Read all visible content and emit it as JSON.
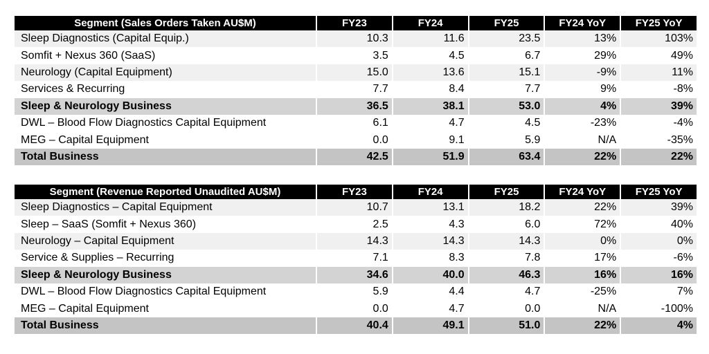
{
  "tables": [
    {
      "headers": [
        "Segment (Sales Orders Taken AU$M)",
        "FY23",
        "FY24",
        "FY25",
        "FY24 YoY",
        "FY25 YoY"
      ],
      "rows": [
        {
          "kind": "alt",
          "cells": [
            "Sleep Diagnostics (Capital Equip.)",
            "10.3",
            "11.6",
            "23.5",
            "13%",
            "103%"
          ]
        },
        {
          "kind": "plain",
          "cells": [
            "Somfit + Nexus 360 (SaaS)",
            "3.5",
            "4.5",
            "6.7",
            "29%",
            "49%"
          ]
        },
        {
          "kind": "alt",
          "cells": [
            "Neurology (Capital Equipment)",
            "15.0",
            "13.6",
            "15.1",
            "-9%",
            "11%"
          ]
        },
        {
          "kind": "plain",
          "cells": [
            "Services & Recurring",
            "7.7",
            "8.4",
            "7.7",
            "9%",
            "-8%"
          ]
        },
        {
          "kind": "sub",
          "cells": [
            "Sleep & Neurology Business",
            "36.5",
            "38.1",
            "53.0",
            "4%",
            "39%"
          ]
        },
        {
          "kind": "plain",
          "cells": [
            "DWL – Blood Flow Diagnostics Capital Equipment",
            "6.1",
            "4.7",
            "4.5",
            "-23%",
            "-4%"
          ]
        },
        {
          "kind": "plain",
          "cells": [
            "MEG – Capital Equipment",
            "0.0",
            "9.1",
            "5.9",
            "N/A",
            "-35%"
          ]
        },
        {
          "kind": "total",
          "cells": [
            "Total Business",
            "42.5",
            "51.9",
            "63.4",
            "22%",
            "22%"
          ]
        }
      ]
    },
    {
      "headers": [
        "Segment (Revenue Reported Unaudited AU$M)",
        "FY23",
        "FY24",
        "FY25",
        "FY24 YoY",
        "FY25 YoY"
      ],
      "rows": [
        {
          "kind": "alt",
          "cells": [
            "Sleep Diagnostics – Capital Equipment",
            "10.7",
            "13.1",
            "18.2",
            "22%",
            "39%"
          ]
        },
        {
          "kind": "plain",
          "cells": [
            "Sleep – SaaS (Somfit + Nexus 360)",
            "2.5",
            "4.3",
            "6.0",
            "72%",
            "40%"
          ]
        },
        {
          "kind": "alt",
          "cells": [
            "Neurology – Capital Equipment",
            "14.3",
            "14.3",
            "14.3",
            "0%",
            "0%"
          ]
        },
        {
          "kind": "plain",
          "cells": [
            "Service & Supplies – Recurring",
            "7.1",
            "8.3",
            "7.8",
            "17%",
            "-6%"
          ]
        },
        {
          "kind": "sub",
          "cells": [
            "Sleep & Neurology Business",
            "34.6",
            "40.0",
            "46.3",
            "16%",
            "16%"
          ]
        },
        {
          "kind": "plain",
          "cells": [
            "DWL – Blood Flow Diagnostics Capital Equipment",
            "5.9",
            "4.4",
            "4.7",
            "-25%",
            "7%"
          ]
        },
        {
          "kind": "plain",
          "cells": [
            "MEG – Capital Equipment",
            "0.0",
            "4.7",
            "0.0",
            "N/A",
            "-100%"
          ]
        },
        {
          "kind": "total",
          "cells": [
            "Total Business",
            "40.4",
            "49.1",
            "51.0",
            "22%",
            "4%"
          ]
        }
      ]
    }
  ]
}
